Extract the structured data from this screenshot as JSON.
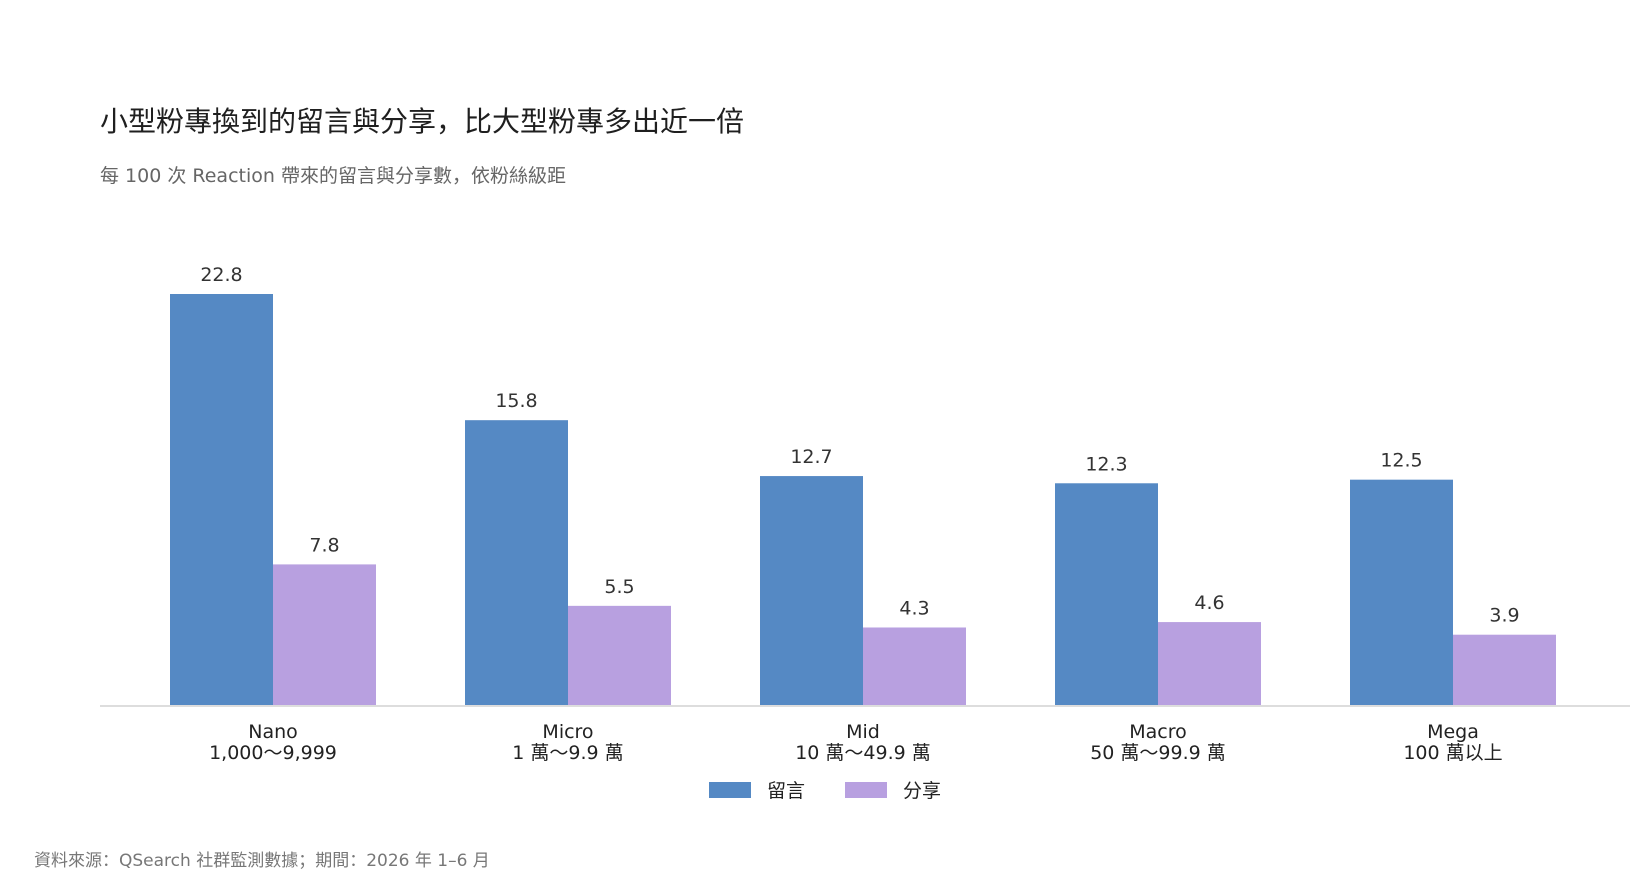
{
  "title": "小型粉專換到的留言與分享，比大型粉專多出近一倍",
  "subtitle": "每 100 次 Reaction 帶來的留言與分享數，依粉絲級距",
  "source": "資料來源：QSearch 社群監測數據；期間：2026 年 1–6 月",
  "colors": {
    "comments": "#5589c4",
    "shares": "#b8a0e0",
    "axis": "#dddddd"
  },
  "chart_data": {
    "type": "bar",
    "title": "小型粉專換到的留言與分享，比大型粉專多出近一倍",
    "subtitle": "每 100 次 Reaction 帶來的留言與分享數，依粉絲級距",
    "xlabel": "",
    "ylabel": "",
    "categories": [
      {
        "name": "Nano",
        "range": "1,000～9,999"
      },
      {
        "name": "Micro",
        "range": "1 萬～9.9 萬"
      },
      {
        "name": "Mid",
        "range": "10 萬～49.9 萬"
      },
      {
        "name": "Macro",
        "range": "50 萬～99.9 萬"
      },
      {
        "name": "Mega",
        "range": "100 萬以上"
      }
    ],
    "series": [
      {
        "name": "留言",
        "values": [
          22.8,
          15.8,
          12.7,
          12.3,
          12.5
        ],
        "labels": [
          "22.8",
          "15.8",
          "12.7",
          "12.3",
          "12.5"
        ]
      },
      {
        "name": "分享",
        "values": [
          7.8,
          5.5,
          4.3,
          4.6,
          3.9
        ],
        "labels": [
          "7.8",
          "5.5",
          "4.3",
          "4.6",
          "3.9"
        ]
      }
    ],
    "ylim": [
      0,
      22.8
    ],
    "grid": false,
    "legend_position": "bottom-center"
  }
}
